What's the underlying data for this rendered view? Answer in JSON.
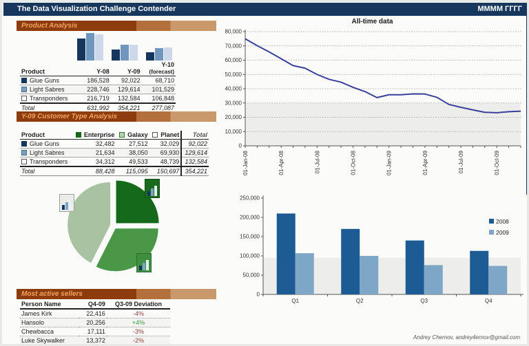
{
  "header": {
    "title": "The Data Visualization Challenge Contender",
    "period": "MMMM ГГГГ"
  },
  "product_analysis": {
    "section_title": "Product Analysis",
    "columns": [
      "Product",
      "Y-08",
      "Y-09",
      "Y-10"
    ],
    "forecast_note": "(forecast)",
    "rows": [
      {
        "name": "Glue Guns",
        "marker": "navy",
        "values": [
          "186,528",
          "92,022",
          "68,710"
        ]
      },
      {
        "name": "Light Sabres",
        "marker": "steel",
        "values": [
          "228,746",
          "129,614",
          "101,529"
        ]
      },
      {
        "name": "Transponders",
        "marker": "white",
        "values": [
          "216,719",
          "132,584",
          "106,848"
        ]
      }
    ],
    "total": {
      "label": "Total",
      "values": [
        "631,992",
        "354,221",
        "277,087"
      ]
    }
  },
  "customer_analysis": {
    "section_title": "Y-09 Customer Type Analysis",
    "columns": [
      "Product",
      "Enterprise",
      "Galaxy",
      "Planet",
      "Total"
    ],
    "rows": [
      {
        "name": "Glue Guns",
        "marker": "navy",
        "values": [
          "32,482",
          "27,512",
          "32,029",
          "92,022"
        ]
      },
      {
        "name": "Light Sabres",
        "marker": "steel",
        "values": [
          "21,634",
          "38,050",
          "69,930",
          "129,614"
        ]
      },
      {
        "name": "Transponders",
        "marker": "white",
        "values": [
          "34,312",
          "49,533",
          "48,739",
          "132,584"
        ]
      }
    ],
    "total": {
      "label": "Total",
      "values": [
        "88,428",
        "115,095",
        "150,697",
        "354,221"
      ]
    }
  },
  "sellers": {
    "section_title": "Most active sellers",
    "columns": [
      "Person Name",
      "Q4-09",
      "Q3-09 Deviation"
    ],
    "rows": [
      {
        "name": "James Kirk",
        "q4": "22,416",
        "deviation": "-4%",
        "trend": "neg"
      },
      {
        "name": "Hansolo",
        "q4": "20,256",
        "deviation": "+4%",
        "trend": "pos"
      },
      {
        "name": "Chewbacca",
        "q4": "17,111",
        "deviation": "-3%",
        "trend": "neg"
      },
      {
        "name": "Luke Skywalker",
        "q4": "13,372",
        "deviation": "-2%",
        "trend": "neg"
      }
    ]
  },
  "footer": {
    "credit": "Andrey Chernov, andrey4ernov@gmail.com"
  },
  "colors": {
    "accent_navy": "#17375d",
    "bar_2008": "#1c5b94",
    "bar_2009": "#7ea6c6",
    "line": "#38409b",
    "negative": "#8e3a38",
    "positive": "#3c9a3c",
    "section_dark": "#8d3c0e",
    "section_mid": "#b3703c",
    "section_light": "#c9996c"
  },
  "chart_data": [
    {
      "id": "product-yearly-mini-bars",
      "type": "bar",
      "categories": [
        "Y-08",
        "Y-09",
        "Y-10 (forecast)"
      ],
      "series": [
        {
          "name": "Glue Guns",
          "color": "#17365d",
          "values": [
            186528,
            92022,
            68710
          ]
        },
        {
          "name": "Light Sabres",
          "color": "#7096bd",
          "values": [
            228746,
            129614,
            101529
          ]
        },
        {
          "name": "Transponders",
          "color": "#cdd9ea",
          "values": [
            216719,
            132584,
            106848
          ]
        }
      ],
      "ylim": [
        0,
        230000
      ],
      "grid": false,
      "legend_position": "none"
    },
    {
      "id": "y09-customer-share-pie",
      "type": "pie",
      "labels": [
        "Enterprise",
        "Galaxy",
        "Planet"
      ],
      "values": [
        88428,
        115095,
        150697
      ],
      "colors": [
        "#15691a",
        "#4a9747",
        "#a9c2a2"
      ]
    },
    {
      "id": "all-time-line",
      "type": "line",
      "title": "All-time data",
      "x": [
        "Jan-08",
        "Feb-08",
        "Mar-08",
        "Apr-08",
        "May-08",
        "Jun-08",
        "Jul-08",
        "Aug-08",
        "Sep-08",
        "Oct-08",
        "Nov-08",
        "Dec-08",
        "Jan-09",
        "Feb-09",
        "Mar-09",
        "Apr-09",
        "May-09",
        "Jun-09",
        "Jul-09",
        "Aug-09",
        "Sep-09",
        "Oct-09",
        "Nov-09",
        "Dec-09"
      ],
      "values": [
        75000,
        70200,
        65800,
        61000,
        56200,
        54400,
        50000,
        46600,
        44600,
        41000,
        38000,
        33800,
        35800,
        35800,
        36400,
        36300,
        34000,
        29000,
        27000,
        25200,
        23500,
        23200,
        23900,
        24300
      ],
      "x_tick_labels": [
        "01-Jan-08",
        "01-Apr-08",
        "01-Jul-08",
        "01-Oct-08",
        "01-Jan-09",
        "01-Apr-09",
        "01-Jul-09",
        "01-Oct-09"
      ],
      "ylim": [
        0,
        80000
      ],
      "y_step": 10000,
      "band": [
        0,
        30000
      ],
      "grid": true,
      "legend_position": "none"
    },
    {
      "id": "quarterly-comparison-bars",
      "type": "bar",
      "categories": [
        "Q1",
        "Q2",
        "Q3",
        "Q4"
      ],
      "series": [
        {
          "name": "2008",
          "color": "#1c5b94",
          "values": [
            210000,
            170000,
            140000,
            113000
          ]
        },
        {
          "name": "2009",
          "color": "#7ea6c6",
          "values": [
            107000,
            100000,
            76000,
            74000
          ]
        }
      ],
      "ylim": [
        0,
        250000
      ],
      "y_step": 50000,
      "band": [
        0,
        95000
      ],
      "grid": false,
      "legend_position": "right"
    }
  ]
}
